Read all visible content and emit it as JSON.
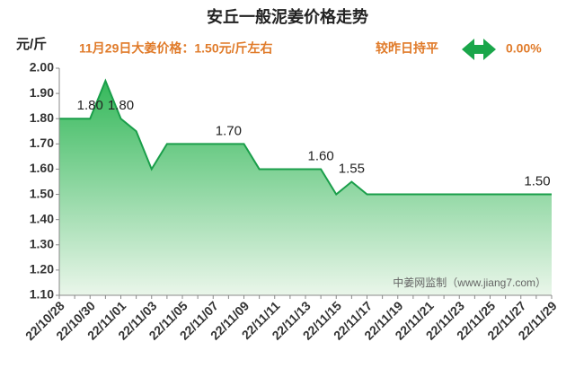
{
  "chart_data": {
    "type": "area",
    "title": "安丘一般泥姜价格走势",
    "y_unit": "元/斤",
    "annotation": "11月29日大姜价格：1.50元/斤左右",
    "change_label": "较昨日持平",
    "change_value": "0.00%",
    "watermark": "中姜网监制（www.jiang7.com）",
    "categories": [
      "22/10/28",
      null,
      "22/10/30",
      null,
      "22/11/01",
      null,
      "22/11/03",
      null,
      "22/11/05",
      null,
      "22/11/07",
      null,
      "22/11/09",
      null,
      "22/11/11",
      null,
      "22/11/13",
      null,
      "22/11/15",
      null,
      "22/11/17",
      null,
      "22/11/19",
      null,
      "22/11/21",
      null,
      "22/11/23",
      null,
      "22/11/25",
      null,
      "22/11/27",
      null,
      "22/11/29"
    ],
    "values": [
      1.8,
      1.8,
      1.8,
      1.95,
      1.8,
      1.75,
      1.6,
      1.7,
      1.7,
      1.7,
      1.7,
      1.7,
      1.7,
      1.6,
      1.6,
      1.6,
      1.6,
      1.6,
      1.5,
      1.55,
      1.5,
      1.5,
      1.5,
      1.5,
      1.5,
      1.5,
      1.5,
      1.5,
      1.5,
      1.5,
      1.5,
      1.5,
      1.5
    ],
    "value_labels": [
      null,
      null,
      "1.80",
      null,
      "1.80",
      null,
      null,
      null,
      null,
      null,
      null,
      "1.70",
      null,
      null,
      null,
      null,
      null,
      "1.60",
      null,
      "1.55",
      null,
      null,
      null,
      null,
      null,
      null,
      null,
      null,
      null,
      null,
      null,
      null,
      "1.50"
    ],
    "color": "#1a9e4a",
    "ylim": [
      1.1,
      2.0
    ],
    "yticks": [
      {
        "value": 1.1,
        "label": "1.10"
      },
      {
        "value": 1.2,
        "label": "1.20"
      },
      {
        "value": 1.3,
        "label": "1.30"
      },
      {
        "value": 1.4,
        "label": "1.40"
      },
      {
        "value": 1.5,
        "label": "1.50"
      },
      {
        "value": 1.6,
        "label": "1.60"
      },
      {
        "value": 1.7,
        "label": "1.70"
      },
      {
        "value": 1.8,
        "label": "1.80"
      },
      {
        "value": 1.9,
        "label": "1.90"
      },
      {
        "value": 2.0,
        "label": "2.00"
      }
    ],
    "grid": false
  }
}
